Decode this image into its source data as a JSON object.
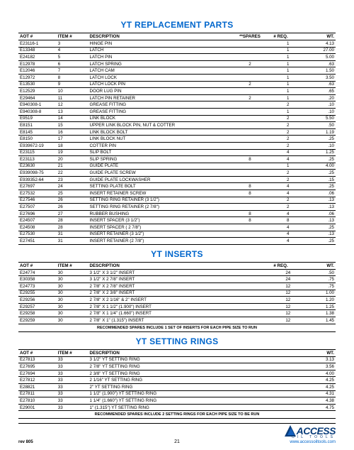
{
  "titles": {
    "t1": "YT REPLACEMENT PARTS",
    "t2": "YT INSERTS",
    "t3": "YT SETTING RINGS"
  },
  "headers": {
    "aot": "AOT #",
    "item": "ITEM #",
    "desc": "DESCRIPTION",
    "spares": "**SPARES",
    "req": "# REQ.",
    "wt": "WT."
  },
  "notes": {
    "n1": "RECOMMENDED SPARES INCLUDE 1 SET OF INSERTS FOR EACH PIPE SIZE TO RUN",
    "n2": "RECOMMENDED SPARES INCLUDE 2 SETTING RINGS FOR EACH PIPE SIZE TO BE RUN"
  },
  "footer": {
    "rev": "rev 805",
    "page": "21",
    "brand": "ACCESS",
    "brandsub": "OIL TOOLS",
    "url": "www.accessoiltools.com"
  },
  "parts": [
    {
      "aot": "E23116-1",
      "item": "3",
      "desc": "HINGE PIN",
      "sp": "",
      "req": "1",
      "wt": "4.13"
    },
    {
      "aot": "E13348",
      "item": "4",
      "desc": "LATCH",
      "sp": "",
      "req": "1",
      "wt": "27.00"
    },
    {
      "aot": "E24182",
      "item": "5",
      "desc": "LATCH PIN",
      "sp": "",
      "req": "1",
      "wt": "5.00"
    },
    {
      "aot": "E12978",
      "item": "6",
      "desc": "LATCH SPRING",
      "sp": "2",
      "req": "1",
      "wt": ".63"
    },
    {
      "aot": "E12046",
      "item": "7",
      "desc": "LATCH CAM",
      "sp": "",
      "req": "1",
      "wt": "1.50"
    },
    {
      "aot": "E12972",
      "item": "8",
      "desc": "LATCH LOCK",
      "sp": "",
      "req": "1",
      "wt": "3.50"
    },
    {
      "aot": "E13530",
      "item": "9",
      "desc": "LATCH LOCK PIN",
      "sp": "2",
      "req": "1",
      "wt": ".63"
    },
    {
      "aot": "E12529",
      "item": "10",
      "desc": "DOOR LUG PIN",
      "sp": "",
      "req": "1",
      "wt": ".65"
    },
    {
      "aot": "E29464",
      "item": "11",
      "desc": "LATCH PIN RETAINER",
      "sp": "2",
      "req": "1",
      "wt": ".20"
    },
    {
      "aot": "E940308-1",
      "item": "12",
      "desc": "GREASE FITTING",
      "sp": "",
      "req": "2",
      "wt": ".10"
    },
    {
      "aot": "E940308-8",
      "item": "13",
      "desc": "GREASE FITTING",
      "sp": "",
      "req": "1",
      "wt": ".10"
    },
    {
      "aot": "E9519",
      "item": "14",
      "desc": "LINK BLOCK",
      "sp": "",
      "req": "2",
      "wt": "5.50"
    },
    {
      "aot": "E8151",
      "item": "15",
      "desc": "UPPER LINK BLOCK PIN, NUT & COTTER",
      "sp": "",
      "req": "2",
      "wt": ".50"
    },
    {
      "aot": "E8145",
      "item": "16",
      "desc": "LINK BLOCK BOLT",
      "sp": "",
      "req": "2",
      "wt": "1.19"
    },
    {
      "aot": "E8150",
      "item": "17",
      "desc": "LINK BLOCK NUT",
      "sp": "",
      "req": "2",
      "wt": ".25"
    },
    {
      "aot": "E939672-19",
      "item": "18",
      "desc": "COTTER PIN",
      "sp": "",
      "req": "2",
      "wt": ".10"
    },
    {
      "aot": "E23115",
      "item": "19",
      "desc": "SLIP BOLT",
      "sp": "",
      "req": "4",
      "wt": "1.25"
    },
    {
      "aot": "E23113",
      "item": "20",
      "desc": "SLIP SPRING",
      "sp": "8",
      "req": "4",
      "wt": ".25"
    },
    {
      "aot": "E23630",
      "item": "21",
      "desc": "GUIDE PLATE",
      "sp": "",
      "req": "1",
      "wt": "4.00"
    },
    {
      "aot": "E939098-75",
      "item": "22",
      "desc": "GUIDE PLATE SCREW",
      "sp": "",
      "req": "2",
      "wt": ".25"
    },
    {
      "aot": "E939352-64",
      "item": "23",
      "desc": "GUIDE PLATE LOCKWASHER",
      "sp": "",
      "req": "2",
      "wt": ".15"
    },
    {
      "aot": "E27697",
      "item": "24",
      "desc": "SETTING PLATE BOLT",
      "sp": "8",
      "req": "4",
      "wt": ".25"
    },
    {
      "aot": "E27532",
      "item": "25",
      "desc": "INSERT RETAINER SCREW",
      "sp": "8",
      "req": "4",
      "wt": ".06"
    },
    {
      "aot": "E27546",
      "item": "26",
      "desc": "SETTING RING RETAINER (3 1/2\")",
      "sp": "",
      "req": "2",
      "wt": ".13"
    },
    {
      "aot": "E27507",
      "item": "26",
      "desc": "SETTING RING RETAINER (2 7/8\")",
      "sp": "",
      "req": "2",
      "wt": ".13"
    },
    {
      "aot": "E27696",
      "item": "27",
      "desc": "RUBBER BUSHING",
      "sp": "8",
      "req": "4",
      "wt": ".06"
    },
    {
      "aot": "E24507",
      "item": "28",
      "desc": "INSERT SPACER (3 1/2\")",
      "sp": "8",
      "req": "8",
      "wt": ".13"
    },
    {
      "aot": "E24508",
      "item": "28",
      "desc": "INSERT SPACER ( 2 7/8\")",
      "sp": "",
      "req": "4",
      "wt": ".25"
    },
    {
      "aot": "E27530",
      "item": "31",
      "desc": "INSERT RETAINER (3 1/2\")",
      "sp": "",
      "req": "4",
      "wt": ".13"
    },
    {
      "aot": "E27451",
      "item": "31",
      "desc": "INSERT RETAINER (2 7/8\")",
      "sp": "",
      "req": "4",
      "wt": ".25"
    }
  ],
  "inserts": [
    {
      "aot": "E24774",
      "item": "30",
      "desc": "3 1/2\" X 3 1/2\" INSERT",
      "req": "24",
      "wt": ".50"
    },
    {
      "aot": "E30358",
      "item": "30",
      "desc": "3 1/2\" X 2 7/8\" INSERT",
      "req": "24",
      "wt": ".75"
    },
    {
      "aot": "E24773",
      "item": "30",
      "desc": "2 7/8\" X 2 7/8\" INSERT",
      "req": "12",
      "wt": ".75"
    },
    {
      "aot": "E29255",
      "item": "30",
      "desc": "2 7/8\" X 2 3/8\" INSERT",
      "req": "12",
      "wt": "1.00"
    },
    {
      "aot": "E29256",
      "item": "30",
      "desc": "2 7/8\" X 2 1/16\" & 2\" INSERT",
      "req": "12",
      "wt": "1.20"
    },
    {
      "aot": "E29257",
      "item": "30",
      "desc": "2 7/8\" X 1 1/2\" (1.900\") INSERT",
      "req": "12",
      "wt": "1.25"
    },
    {
      "aot": "E29258",
      "item": "30",
      "desc": "2 7/8\" X 1 1/4\" (1.660\") INSERT",
      "req": "12",
      "wt": "1.38"
    },
    {
      "aot": "E29259",
      "item": "30",
      "desc": "2 7/8\" X 1\" (1.315\") INSERT",
      "req": "12",
      "wt": "1.45"
    }
  ],
  "rings": [
    {
      "aot": "E27813",
      "item": "33",
      "desc": "3 1/2\" YT SETTING RING",
      "wt": "3.13"
    },
    {
      "aot": "E27695",
      "item": "33",
      "desc": "2 7/8\" YT SETTING RING",
      "wt": "3.56"
    },
    {
      "aot": "E27694",
      "item": "33",
      "desc": "2 3/8\" YT SETTING RING",
      "wt": "4.00"
    },
    {
      "aot": "E27812",
      "item": "33",
      "desc": "2 1/16\" YT SETTING RING",
      "wt": "4.25"
    },
    {
      "aot": "E28821",
      "item": "33",
      "desc": "2\" YT SETTING RING",
      "wt": "4.25"
    },
    {
      "aot": "E27811",
      "item": "33",
      "desc": "1 1/2\" (1.900\") YT SETTING RING",
      "wt": "4.31"
    },
    {
      "aot": "E27810",
      "item": "33",
      "desc": "1 1/4\" (1.660\") YT SETTING RING",
      "wt": "4.38"
    },
    {
      "aot": "E29001",
      "item": "33",
      "desc": "1\" (1.315\") YT SETTING RING",
      "wt": "4.75"
    }
  ]
}
